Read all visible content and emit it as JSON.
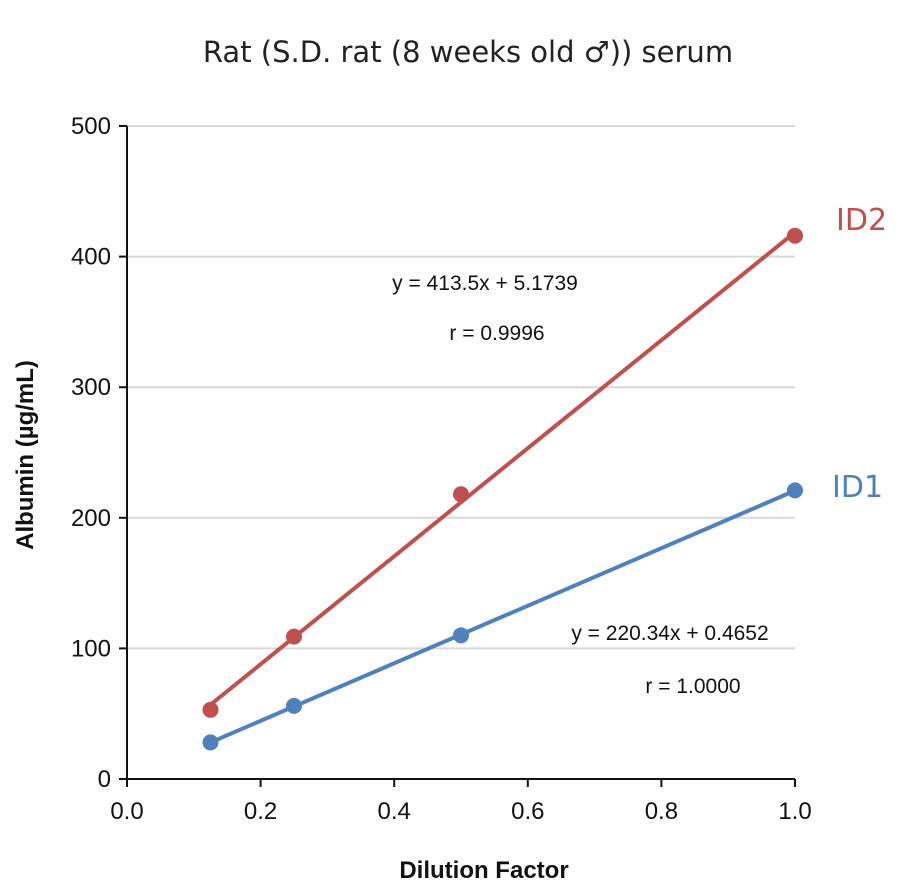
{
  "chart_data": {
    "type": "scatter",
    "title": "Rat (S.D. rat (8 weeks old ♂)) serum",
    "xlabel": "Dilution Factor",
    "ylabel": "Albumin (µg/mL)",
    "xlim": [
      0.0,
      1.0
    ],
    "ylim": [
      0,
      500
    ],
    "xticks": [
      "0.0",
      "0.2",
      "0.4",
      "0.6",
      "0.8",
      "1.0"
    ],
    "yticks": [
      "0",
      "100",
      "200",
      "300",
      "400",
      "500"
    ],
    "grid": "horizontal",
    "series": [
      {
        "name": "ID2",
        "color": "#C0504D",
        "x": [
          0.125,
          0.25,
          0.5,
          1.0
        ],
        "y": [
          53,
          109,
          218,
          416
        ],
        "trendline": {
          "slope": 413.5,
          "intercept": 5.1739
        },
        "equation": "y = 413.5x + 5.1739",
        "r": "r = 0.9996"
      },
      {
        "name": "ID1",
        "color": "#4F81BD",
        "x": [
          0.125,
          0.25,
          0.5,
          1.0
        ],
        "y": [
          28,
          56,
          110,
          221
        ],
        "trendline": {
          "slope": 220.34,
          "intercept": 0.4652
        },
        "equation": "y = 220.34x + 0.4652",
        "r": "r = 1.0000"
      }
    ]
  }
}
